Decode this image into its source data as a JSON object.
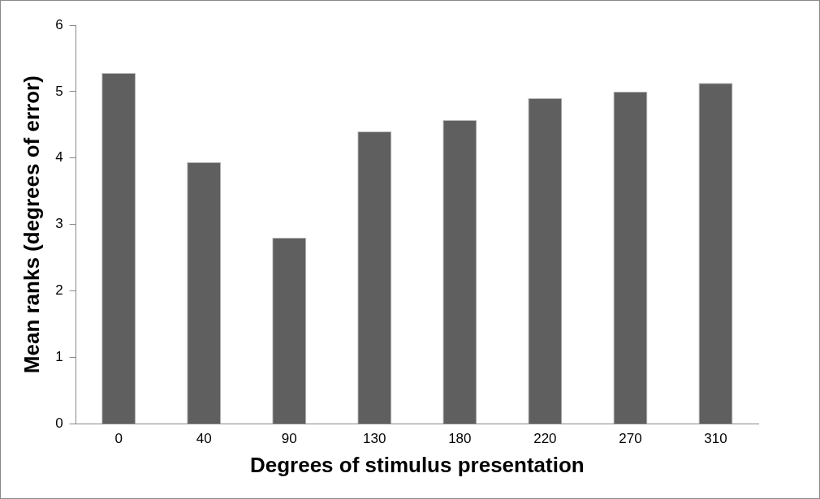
{
  "chart_data": {
    "type": "bar",
    "xlabel": "Degrees of stimulus presentation",
    "ylabel": "Mean ranks (degrees of error)",
    "categories": [
      "0",
      "40",
      "90",
      "130",
      "180",
      "220",
      "270",
      "310"
    ],
    "values": [
      5.28,
      3.94,
      2.8,
      4.4,
      4.57,
      4.9,
      5.0,
      5.13
    ],
    "color": "#5f5f5f",
    "ylim": [
      0,
      6
    ],
    "yticks": [
      0,
      1,
      2,
      3,
      4,
      5,
      6
    ],
    "grid": false,
    "legend": false
  }
}
